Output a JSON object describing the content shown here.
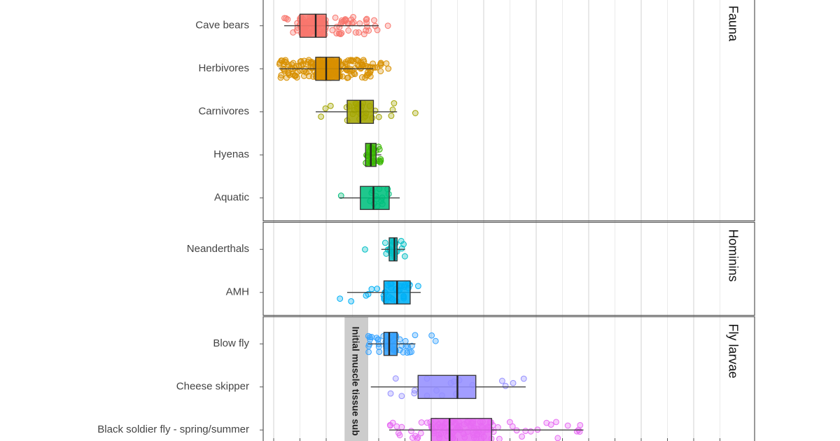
{
  "chart_data": {
    "type": "box",
    "orientation": "horizontal",
    "xlim": [
      -2,
      88
    ],
    "x_major_step": 10,
    "grid": true,
    "facets": [
      {
        "name": "Fauna",
        "categories": [
          "Cave bears",
          "Herbivores",
          "Carnivores",
          "Hyenas",
          "Aquatic"
        ]
      },
      {
        "name": "Hominins",
        "categories": [
          "Neanderthals",
          "AMH"
        ]
      },
      {
        "name": "Fly larvae",
        "categories": [
          "Blow fly",
          "Cheese skipper",
          "Black soldier fly - spring/summer"
        ]
      }
    ],
    "series": [
      {
        "name": "Cave bears",
        "facet": "Fauna",
        "color": "#F8766D",
        "whisker_low": 2,
        "q1": 5,
        "median": 8,
        "q3": 10,
        "whisker_high": 20,
        "points_range": [
          2,
          22
        ],
        "n_points": 140
      },
      {
        "name": "Herbivores",
        "facet": "Fauna",
        "color": "#D89000",
        "whisker_low": 1,
        "q1": 8,
        "median": 10,
        "q3": 12.5,
        "whisker_high": 19,
        "points_range": [
          1,
          22
        ],
        "n_points": 280
      },
      {
        "name": "Carnivores",
        "facet": "Fauna",
        "color": "#A3A500",
        "whisker_low": 8,
        "q1": 14,
        "median": 16.5,
        "q3": 19,
        "whisker_high": 23.5,
        "points_range": [
          8,
          28.5
        ],
        "n_points": 30
      },
      {
        "name": "Hyenas",
        "facet": "Fauna",
        "color": "#39B600",
        "whisker_low": 17.5,
        "q1": 17.5,
        "median": 18.5,
        "q3": 19.5,
        "whisker_high": 20.5,
        "points_range": [
          17,
          21
        ],
        "n_points": 22
      },
      {
        "name": "Aquatic",
        "facet": "Fauna",
        "color": "#00BF7D",
        "whisker_low": 12.5,
        "q1": 16.5,
        "median": 19,
        "q3": 22,
        "whisker_high": 24,
        "points_range": [
          12.5,
          24.5
        ],
        "n_points": 14
      },
      {
        "name": "Neanderthals",
        "facet": "Hominins",
        "color": "#00BFC4",
        "whisker_low": 20.5,
        "q1": 22,
        "median": 23,
        "q3": 23.5,
        "whisker_high": 25,
        "points_range": [
          16,
          28.5
        ],
        "n_points": 22
      },
      {
        "name": "AMH",
        "facet": "Hominins",
        "color": "#00B0F6",
        "whisker_low": 14,
        "q1": 21,
        "median": 23.5,
        "q3": 26,
        "whisker_high": 28,
        "points_range": [
          10.5,
          28
        ],
        "n_points": 34
      },
      {
        "name": "Blow fly",
        "facet": "Fly larvae",
        "color": "#35A2FF",
        "whisker_low": 18,
        "q1": 21,
        "median": 22,
        "q3": 23.5,
        "whisker_high": 27,
        "points_range": [
          17,
          38.5
        ],
        "n_points": 55
      },
      {
        "name": "Cheese skipper",
        "facet": "Fly larvae",
        "color": "#9590FF",
        "whisker_low": 18.5,
        "q1": 27.5,
        "median": 35,
        "q3": 38.5,
        "whisker_high": 48,
        "points_range": [
          12,
          48
        ],
        "n_points": 18
      },
      {
        "name": "Black soldier fly - spring/summer",
        "facet": "Fly larvae",
        "color": "#E76BF3",
        "whisker_low": 22,
        "q1": 30,
        "median": 33.5,
        "q3": 41.5,
        "whisker_high": 59,
        "points_range": [
          22,
          60
        ],
        "n_points": 110
      }
    ],
    "annotations": [
      {
        "text": "Initial muscle tissue sub",
        "facet": "Fly larvae",
        "band_x": [
          13.5,
          18
        ],
        "color": "#cccccc",
        "orientation": "vertical"
      }
    ]
  }
}
